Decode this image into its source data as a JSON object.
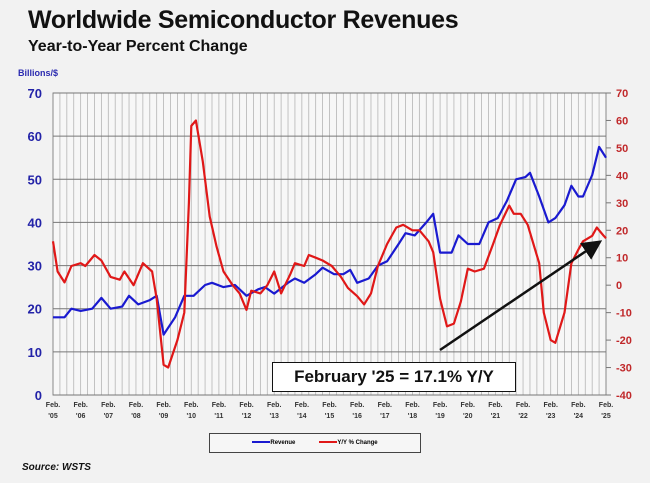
{
  "chart_data": {
    "type": "line",
    "title": "Worldwide Semiconductor Revenues",
    "subtitle": "Year-to-Year Percent Change",
    "ylabel_left": "Billions/$",
    "source": "Source: WSTS",
    "annotation": "February '25 = 17.1% Y/Y",
    "ylim_left": [
      0,
      70
    ],
    "ylim_right": [
      -40,
      70
    ],
    "yticks_left": [
      "0",
      "10",
      "20",
      "30",
      "40",
      "50",
      "60",
      "70"
    ],
    "yticks_right": [
      "-40",
      "-30",
      "-20",
      "-10",
      "0",
      "10",
      "20",
      "30",
      "40",
      "50",
      "60",
      "70"
    ],
    "xlim": [
      "2005-02",
      "2025-02"
    ],
    "xticks": [
      [
        "Feb.",
        "'05"
      ],
      [
        "Feb.",
        "'06"
      ],
      [
        "Feb.",
        "'07"
      ],
      [
        "Feb.",
        "'08"
      ],
      [
        "Feb.",
        "'09"
      ],
      [
        "Feb.",
        "'10"
      ],
      [
        "Feb.",
        "'11"
      ],
      [
        "Feb.",
        "'12"
      ],
      [
        "Feb.",
        "'13"
      ],
      [
        "Feb.",
        "'14"
      ],
      [
        "Feb.",
        "'15"
      ],
      [
        "Feb.",
        "'16"
      ],
      [
        "Feb.",
        "'17"
      ],
      [
        "Feb.",
        "'18"
      ],
      [
        "Feb.",
        "'19"
      ],
      [
        "Feb.",
        "'20"
      ],
      [
        "Feb.",
        "'21"
      ],
      [
        "Feb.",
        "'22"
      ],
      [
        "Feb.",
        "'23"
      ],
      [
        "Feb.",
        "'24"
      ],
      [
        "Feb.",
        "'25"
      ]
    ],
    "grid": true,
    "legend_position": "bottom-center",
    "series": [
      {
        "name": "Revenue",
        "axis": "left",
        "color": "#1a1ad0",
        "points": [
          [
            "2005-02",
            18
          ],
          [
            "2005-07",
            18
          ],
          [
            "2005-10",
            20
          ],
          [
            "2006-02",
            19.5
          ],
          [
            "2006-07",
            20
          ],
          [
            "2006-11",
            22.5
          ],
          [
            "2007-03",
            20
          ],
          [
            "2007-08",
            20.5
          ],
          [
            "2007-11",
            23
          ],
          [
            "2008-03",
            21
          ],
          [
            "2008-08",
            22
          ],
          [
            "2008-11",
            23
          ],
          [
            "2009-02",
            14
          ],
          [
            "2009-07",
            18
          ],
          [
            "2009-11",
            23
          ],
          [
            "2010-03",
            23
          ],
          [
            "2010-08",
            25.5
          ],
          [
            "2010-11",
            26
          ],
          [
            "2011-04",
            25
          ],
          [
            "2011-09",
            25.5
          ],
          [
            "2012-02",
            23
          ],
          [
            "2012-07",
            24.5
          ],
          [
            "2012-10",
            25
          ],
          [
            "2013-02",
            23.5
          ],
          [
            "2013-08",
            26
          ],
          [
            "2013-11",
            27
          ],
          [
            "2014-03",
            26
          ],
          [
            "2014-08",
            28
          ],
          [
            "2014-11",
            29.5
          ],
          [
            "2015-04",
            28
          ],
          [
            "2015-08",
            28
          ],
          [
            "2015-11",
            29
          ],
          [
            "2016-02",
            26
          ],
          [
            "2016-07",
            27
          ],
          [
            "2016-11",
            30
          ],
          [
            "2017-03",
            31
          ],
          [
            "2017-08",
            35
          ],
          [
            "2017-11",
            37.5
          ],
          [
            "2018-03",
            37
          ],
          [
            "2018-08",
            40
          ],
          [
            "2018-11",
            42
          ],
          [
            "2019-02",
            33
          ],
          [
            "2019-07",
            33
          ],
          [
            "2019-10",
            37
          ],
          [
            "2020-02",
            35
          ],
          [
            "2020-07",
            35
          ],
          [
            "2020-11",
            40
          ],
          [
            "2021-03",
            41
          ],
          [
            "2021-07",
            45
          ],
          [
            "2021-11",
            50
          ],
          [
            "2022-03",
            50.5
          ],
          [
            "2022-05",
            51.5
          ],
          [
            "2022-09",
            46
          ],
          [
            "2023-01",
            40
          ],
          [
            "2023-04",
            41
          ],
          [
            "2023-08",
            44
          ],
          [
            "2023-11",
            48.5
          ],
          [
            "2024-02",
            46
          ],
          [
            "2024-04",
            46
          ],
          [
            "2024-08",
            51
          ],
          [
            "2024-11",
            57.5
          ],
          [
            "2025-02",
            55
          ]
        ]
      },
      {
        "name": "Y/Y % Change",
        "axis": "right",
        "color": "#e01818",
        "points": [
          [
            "2005-02",
            16
          ],
          [
            "2005-04",
            5
          ],
          [
            "2005-07",
            1
          ],
          [
            "2005-10",
            7
          ],
          [
            "2006-02",
            8
          ],
          [
            "2006-04",
            7
          ],
          [
            "2006-08",
            11
          ],
          [
            "2006-11",
            9
          ],
          [
            "2007-03",
            3
          ],
          [
            "2007-07",
            2
          ],
          [
            "2007-09",
            5
          ],
          [
            "2008-01",
            0
          ],
          [
            "2008-05",
            8
          ],
          [
            "2008-09",
            5
          ],
          [
            "2008-11",
            -5
          ],
          [
            "2009-02",
            -29
          ],
          [
            "2009-04",
            -30
          ],
          [
            "2009-08",
            -20
          ],
          [
            "2009-11",
            -10
          ],
          [
            "2010-01",
            30
          ],
          [
            "2010-02",
            58
          ],
          [
            "2010-04",
            60
          ],
          [
            "2010-07",
            45
          ],
          [
            "2010-10",
            25
          ],
          [
            "2011-01",
            14
          ],
          [
            "2011-04",
            5
          ],
          [
            "2011-08",
            0
          ],
          [
            "2011-11",
            -3
          ],
          [
            "2012-02",
            -9
          ],
          [
            "2012-04",
            -2
          ],
          [
            "2012-08",
            -3
          ],
          [
            "2012-11",
            0
          ],
          [
            "2013-02",
            5
          ],
          [
            "2013-05",
            -3
          ],
          [
            "2013-09",
            4
          ],
          [
            "2013-11",
            8
          ],
          [
            "2014-03",
            7
          ],
          [
            "2014-05",
            11
          ],
          [
            "2014-08",
            10
          ],
          [
            "2014-11",
            9
          ],
          [
            "2015-03",
            7
          ],
          [
            "2015-07",
            3
          ],
          [
            "2015-10",
            -1
          ],
          [
            "2016-02",
            -4
          ],
          [
            "2016-05",
            -7
          ],
          [
            "2016-08",
            -3
          ],
          [
            "2016-11",
            7
          ],
          [
            "2017-03",
            15
          ],
          [
            "2017-07",
            21
          ],
          [
            "2017-10",
            22
          ],
          [
            "2018-02",
            20
          ],
          [
            "2018-05",
            20
          ],
          [
            "2018-09",
            16
          ],
          [
            "2018-11",
            12
          ],
          [
            "2019-02",
            -5
          ],
          [
            "2019-05",
            -15
          ],
          [
            "2019-08",
            -14
          ],
          [
            "2019-11",
            -6
          ],
          [
            "2020-02",
            6
          ],
          [
            "2020-05",
            5
          ],
          [
            "2020-09",
            6
          ],
          [
            "2021-01",
            15
          ],
          [
            "2021-04",
            22
          ],
          [
            "2021-08",
            29
          ],
          [
            "2021-10",
            26
          ],
          [
            "2022-01",
            26
          ],
          [
            "2022-04",
            22
          ],
          [
            "2022-09",
            8
          ],
          [
            "2022-11",
            -10
          ],
          [
            "2023-02",
            -20
          ],
          [
            "2023-04",
            -21
          ],
          [
            "2023-08",
            -10
          ],
          [
            "2023-11",
            8
          ],
          [
            "2024-02",
            13
          ],
          [
            "2024-04",
            16
          ],
          [
            "2024-08",
            18
          ],
          [
            "2024-10",
            21
          ],
          [
            "2025-01",
            18
          ],
          [
            "2025-02",
            17.1
          ]
        ]
      }
    ]
  }
}
